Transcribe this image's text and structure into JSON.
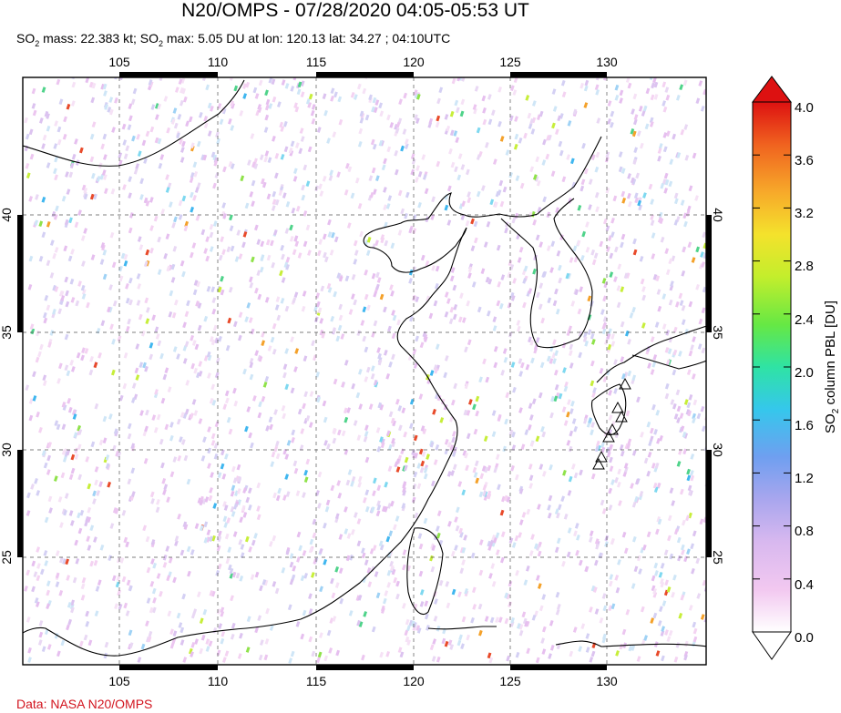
{
  "title": "N20/OMPS - 07/28/2020 04:05-05:53 UT",
  "subtitle": {
    "mass_prefix": "SO",
    "mass_text": " mass: 22.383 kt; SO",
    "max_text": " max: 5.05 DU at lon: 120.13 lat: 34.27 ; 04:10UTC"
  },
  "credit": "Data: NASA N20/OMPS",
  "map": {
    "lon_ticks": [
      "105",
      "110",
      "115",
      "120",
      "125",
      "130"
    ],
    "lat_ticks": [
      "40",
      "35",
      "30",
      "25"
    ],
    "colors": {
      "frame": "#000000",
      "grid": "#555555",
      "coast": "#000000"
    }
  },
  "colorbar": {
    "title_prefix": "SO",
    "title_suffix": " column PBL [DU]",
    "labels": [
      "4.0",
      "3.6",
      "3.2",
      "2.8",
      "2.4",
      "2.0",
      "1.6",
      "1.2",
      "0.8",
      "0.4",
      "0.0"
    ],
    "stops": [
      "#ffffff",
      "#f2c8f0",
      "#d8b8ef",
      "#a9a6ee",
      "#6f9ff0",
      "#35c7ec",
      "#2fe3a4",
      "#66e844",
      "#c3ee2c",
      "#f4e22c",
      "#f7a92a",
      "#f0621f",
      "#dd1111"
    ]
  },
  "volcano_markers": 7
}
